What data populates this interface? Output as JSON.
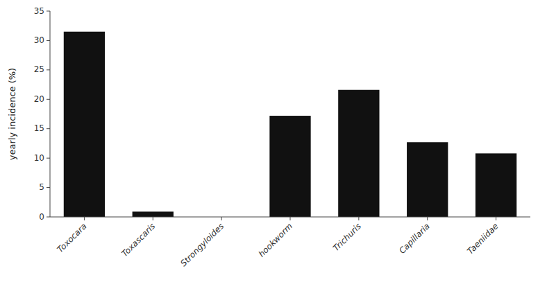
{
  "chart_data": {
    "type": "bar",
    "categories": [
      "Toxocara",
      "Toxascaris",
      "Strongyloides",
      "hookworm",
      "Trichuris",
      "Capillaria",
      "Taeniidae"
    ],
    "values": [
      31.5,
      0.9,
      0.0,
      17.2,
      21.6,
      12.7,
      10.8
    ],
    "color": "#111111",
    "y_label": "yearly incidence (%)",
    "ylim": [
      0,
      35
    ],
    "yticks": [
      0,
      5,
      10,
      15,
      20,
      25,
      30,
      35
    ],
    "grid": false
  }
}
